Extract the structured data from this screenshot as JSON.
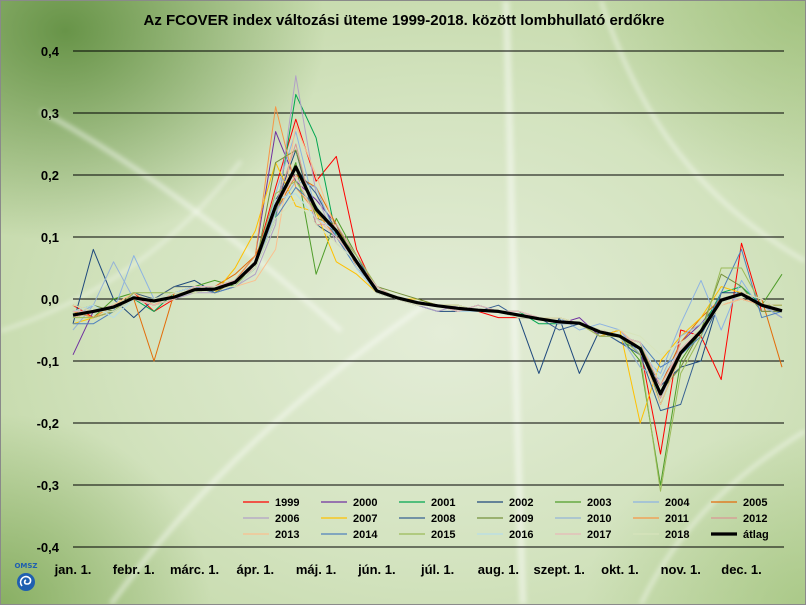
{
  "chart_data": {
    "type": "line",
    "title": "Az FCOVER index változási üteme 1999-2018. között lombhullató erdőkre",
    "ylim": [
      -0.4,
      0.4
    ],
    "y_ticks": [
      "0,4",
      "0,3",
      "0,2",
      "0,1",
      "0,0",
      "-0,1",
      "-0,2",
      "-0,3",
      "-0,4"
    ],
    "x_ticks": [
      "jan. 1.",
      "febr. 1.",
      "márc. 1.",
      "ápr. 1.",
      "máj. 1.",
      "jún. 1.",
      "júl. 1.",
      "aug. 1.",
      "szept. 1.",
      "okt. 1.",
      "nov. 1.",
      "dec. 1."
    ],
    "grid": true,
    "legend_position": "bottom-right",
    "x": [
      "jan. 1.",
      "jan. 11.",
      "jan. 21.",
      "febr. 1.",
      "febr. 11.",
      "febr. 21.",
      "márc. 1.",
      "márc. 11.",
      "márc. 21.",
      "ápr. 1.",
      "ápr. 11.",
      "ápr. 21.",
      "máj. 1.",
      "máj. 11.",
      "máj. 21.",
      "jún. 1.",
      "jún. 11.",
      "jún. 21.",
      "júl. 1.",
      "júl. 11.",
      "júl. 21.",
      "aug. 1.",
      "aug. 11.",
      "aug. 21.",
      "szept. 1.",
      "szept. 11.",
      "szept. 21.",
      "okt. 1.",
      "okt. 11.",
      "okt. 21.",
      "nov. 1.",
      "nov. 11.",
      "nov. 21.",
      "dec. 1.",
      "dec. 11.",
      "dec. 21."
    ],
    "series": [
      {
        "name": "1999",
        "color": "#ff0000",
        "values": [
          -0.01,
          -0.03,
          -0.02,
          0.01,
          -0.02,
          0.0,
          0.02,
          0.01,
          0.03,
          0.06,
          0.18,
          0.29,
          0.19,
          0.23,
          0.08,
          0.01,
          0.0,
          -0.01,
          -0.01,
          -0.02,
          -0.02,
          -0.03,
          -0.03,
          -0.03,
          -0.04,
          -0.04,
          -0.05,
          -0.06,
          -0.08,
          -0.25,
          -0.05,
          -0.06,
          -0.13,
          0.09,
          -0.02,
          -0.02
        ]
      },
      {
        "name": "2000",
        "color": "#7030a0",
        "values": [
          -0.09,
          -0.02,
          -0.01,
          0.0,
          -0.01,
          0.01,
          0.02,
          0.02,
          0.03,
          0.07,
          0.27,
          0.19,
          0.16,
          0.12,
          0.05,
          0.01,
          0.0,
          -0.01,
          -0.01,
          -0.02,
          -0.02,
          -0.02,
          -0.03,
          -0.03,
          -0.04,
          -0.03,
          -0.06,
          -0.05,
          -0.09,
          -0.14,
          -0.07,
          -0.04,
          0.0,
          0.01,
          -0.01,
          -0.03
        ]
      },
      {
        "name": "2001",
        "color": "#00a650",
        "values": [
          -0.03,
          -0.02,
          -0.01,
          0.0,
          -0.02,
          0.01,
          0.01,
          0.02,
          0.02,
          0.05,
          0.13,
          0.33,
          0.26,
          0.1,
          0.06,
          0.02,
          0.0,
          -0.01,
          -0.01,
          -0.01,
          -0.02,
          -0.02,
          -0.02,
          -0.04,
          -0.04,
          -0.04,
          -0.05,
          -0.06,
          -0.07,
          -0.17,
          -0.09,
          -0.05,
          0.01,
          0.02,
          -0.01,
          -0.02
        ]
      },
      {
        "name": "2002",
        "color": "#1f497d",
        "values": [
          -0.04,
          0.08,
          0.0,
          -0.03,
          0.0,
          0.02,
          0.03,
          0.01,
          0.02,
          0.06,
          0.15,
          0.24,
          0.12,
          0.1,
          0.06,
          0.01,
          0.0,
          -0.01,
          -0.02,
          -0.02,
          -0.01,
          -0.02,
          -0.03,
          -0.12,
          -0.03,
          -0.12,
          -0.05,
          -0.07,
          -0.08,
          -0.14,
          -0.11,
          -0.1,
          0.01,
          0.01,
          0.0,
          -0.02
        ]
      },
      {
        "name": "2003",
        "color": "#4f9d2a",
        "values": [
          -0.02,
          -0.03,
          0.0,
          0.01,
          -0.01,
          0.0,
          0.02,
          0.03,
          0.02,
          0.06,
          0.14,
          0.22,
          0.04,
          0.13,
          0.07,
          0.02,
          0.0,
          -0.01,
          -0.01,
          -0.01,
          -0.02,
          -0.02,
          -0.03,
          -0.03,
          -0.04,
          -0.04,
          -0.06,
          -0.06,
          -0.1,
          -0.3,
          -0.1,
          -0.05,
          0.0,
          0.0,
          -0.01,
          0.04
        ]
      },
      {
        "name": "2004",
        "color": "#8db3e2",
        "values": [
          -0.03,
          -0.01,
          -0.02,
          0.07,
          0.0,
          0.01,
          0.01,
          0.02,
          0.03,
          0.05,
          0.17,
          0.27,
          0.14,
          0.11,
          0.05,
          0.01,
          0.0,
          -0.01,
          -0.01,
          -0.02,
          -0.02,
          -0.02,
          -0.02,
          -0.03,
          -0.03,
          -0.05,
          -0.04,
          -0.05,
          -0.09,
          -0.12,
          -0.04,
          0.03,
          -0.05,
          0.03,
          -0.02,
          -0.02
        ]
      },
      {
        "name": "2005",
        "color": "#e36c09",
        "values": [
          -0.01,
          -0.02,
          -0.01,
          0.0,
          -0.1,
          0.01,
          0.01,
          0.02,
          0.04,
          0.07,
          0.14,
          0.2,
          0.18,
          0.12,
          0.05,
          0.02,
          0.0,
          -0.01,
          -0.01,
          -0.02,
          -0.02,
          -0.02,
          -0.03,
          -0.03,
          -0.03,
          -0.04,
          -0.05,
          -0.06,
          -0.07,
          -0.14,
          -0.07,
          -0.03,
          0.0,
          0.01,
          0.0,
          -0.11
        ]
      },
      {
        "name": "2006",
        "color": "#b2a1c7",
        "values": [
          -0.02,
          -0.02,
          -0.02,
          0.0,
          0.0,
          0.0,
          0.01,
          0.01,
          0.02,
          0.04,
          0.12,
          0.36,
          0.17,
          0.09,
          0.06,
          0.01,
          0.0,
          -0.01,
          -0.02,
          -0.01,
          -0.02,
          -0.02,
          -0.03,
          -0.03,
          -0.04,
          -0.04,
          -0.05,
          -0.05,
          -0.08,
          -0.16,
          -0.09,
          -0.05,
          0.0,
          0.0,
          -0.01,
          -0.01
        ]
      },
      {
        "name": "2007",
        "color": "#ffc000",
        "values": [
          -0.04,
          -0.03,
          -0.01,
          0.01,
          0.0,
          0.02,
          0.02,
          0.01,
          0.05,
          0.11,
          0.22,
          0.15,
          0.14,
          0.06,
          0.04,
          0.01,
          0.0,
          0.0,
          -0.01,
          -0.01,
          -0.02,
          -0.02,
          -0.03,
          -0.03,
          -0.03,
          -0.04,
          -0.06,
          -0.05,
          -0.2,
          -0.1,
          -0.06,
          -0.03,
          0.02,
          0.01,
          -0.01,
          -0.02
        ]
      },
      {
        "name": "2008",
        "color": "#366092",
        "values": [
          -0.03,
          -0.02,
          -0.02,
          0.01,
          0.0,
          0.02,
          0.02,
          0.02,
          0.03,
          0.06,
          0.16,
          0.21,
          0.17,
          0.11,
          0.07,
          0.01,
          0.0,
          -0.01,
          -0.01,
          -0.02,
          -0.02,
          -0.01,
          -0.03,
          -0.03,
          -0.05,
          -0.04,
          -0.05,
          -0.07,
          -0.09,
          -0.18,
          -0.17,
          -0.07,
          0.0,
          0.01,
          -0.01,
          -0.02
        ]
      },
      {
        "name": "2009",
        "color": "#76923c",
        "values": [
          -0.02,
          -0.01,
          -0.02,
          0.0,
          0.0,
          0.0,
          0.02,
          0.01,
          0.03,
          0.05,
          0.22,
          0.24,
          0.13,
          0.12,
          0.06,
          0.02,
          0.01,
          0.0,
          -0.01,
          -0.02,
          -0.02,
          -0.02,
          -0.02,
          -0.03,
          -0.03,
          -0.04,
          -0.05,
          -0.06,
          -0.07,
          -0.15,
          -0.11,
          -0.05,
          0.04,
          0.02,
          -0.02,
          -0.02
        ]
      },
      {
        "name": "2010",
        "color": "#95b3d7",
        "values": [
          -0.05,
          -0.01,
          0.06,
          0.0,
          0.0,
          0.01,
          0.01,
          0.02,
          0.02,
          0.05,
          0.14,
          0.19,
          0.18,
          0.1,
          0.05,
          0.02,
          0.0,
          -0.01,
          -0.01,
          -0.01,
          -0.02,
          -0.02,
          -0.03,
          -0.03,
          -0.04,
          -0.04,
          -0.06,
          -0.06,
          -0.11,
          -0.13,
          -0.06,
          -0.04,
          -0.01,
          0.0,
          -0.01,
          -0.03
        ]
      },
      {
        "name": "2011",
        "color": "#f79646",
        "values": [
          -0.02,
          -0.03,
          -0.01,
          0.0,
          0.0,
          0.01,
          0.02,
          0.02,
          0.03,
          0.07,
          0.31,
          0.18,
          0.14,
          0.1,
          0.06,
          0.01,
          0.0,
          -0.01,
          -0.01,
          -0.01,
          -0.02,
          -0.02,
          -0.02,
          -0.03,
          -0.03,
          -0.04,
          -0.05,
          -0.06,
          -0.07,
          -0.14,
          -0.08,
          -0.05,
          -0.01,
          0.0,
          -0.01,
          -0.01
        ]
      },
      {
        "name": "2012",
        "color": "#d99694",
        "values": [
          -0.02,
          -0.02,
          -0.01,
          0.0,
          -0.01,
          0.01,
          0.02,
          0.02,
          0.03,
          0.06,
          0.15,
          0.25,
          0.12,
          0.12,
          0.07,
          0.02,
          0.0,
          -0.01,
          -0.01,
          -0.02,
          -0.02,
          -0.02,
          -0.02,
          -0.03,
          -0.04,
          -0.04,
          -0.06,
          -0.06,
          -0.08,
          -0.16,
          -0.07,
          -0.05,
          0.0,
          0.01,
          0.0,
          -0.02
        ]
      },
      {
        "name": "2013",
        "color": "#fac08f",
        "values": [
          -0.03,
          -0.02,
          -0.01,
          0.01,
          -0.01,
          0.01,
          0.01,
          0.02,
          0.02,
          0.03,
          0.08,
          0.28,
          0.2,
          0.11,
          0.06,
          0.01,
          0.0,
          -0.01,
          -0.01,
          -0.02,
          -0.02,
          -0.02,
          -0.03,
          -0.03,
          -0.03,
          -0.04,
          -0.05,
          -0.05,
          -0.08,
          -0.17,
          -0.09,
          -0.05,
          -0.01,
          0.0,
          -0.01,
          -0.02
        ]
      },
      {
        "name": "2014",
        "color": "#4f81bd",
        "values": [
          -0.04,
          -0.04,
          -0.02,
          0.0,
          0.0,
          0.01,
          0.02,
          0.01,
          0.02,
          0.05,
          0.13,
          0.18,
          0.15,
          0.1,
          0.05,
          0.01,
          0.0,
          -0.01,
          -0.01,
          -0.02,
          -0.02,
          -0.02,
          -0.03,
          -0.03,
          -0.04,
          -0.04,
          -0.05,
          -0.06,
          -0.07,
          -0.11,
          -0.09,
          -0.06,
          0.01,
          0.08,
          -0.03,
          -0.02
        ]
      },
      {
        "name": "2015",
        "color": "#9bbb59",
        "values": [
          -0.03,
          -0.03,
          -0.02,
          0.01,
          0.01,
          0.01,
          0.01,
          0.02,
          0.02,
          0.06,
          0.17,
          0.19,
          0.14,
          0.11,
          0.07,
          0.02,
          0.0,
          -0.01,
          -0.01,
          -0.01,
          -0.02,
          -0.02,
          -0.03,
          -0.03,
          -0.03,
          -0.04,
          -0.06,
          -0.06,
          -0.09,
          -0.31,
          -0.12,
          -0.06,
          0.05,
          0.05,
          -0.01,
          -0.01
        ]
      },
      {
        "name": "2016",
        "color": "#b7dde8",
        "values": [
          -0.02,
          -0.01,
          -0.03,
          0.0,
          0.0,
          0.01,
          0.02,
          0.02,
          0.03,
          0.06,
          0.16,
          0.17,
          0.13,
          0.11,
          0.05,
          0.01,
          0.0,
          -0.01,
          -0.01,
          -0.02,
          -0.02,
          -0.02,
          -0.02,
          -0.03,
          -0.04,
          -0.04,
          -0.05,
          -0.06,
          -0.07,
          -0.13,
          -0.08,
          -0.05,
          0.0,
          0.01,
          -0.01,
          -0.02
        ]
      },
      {
        "name": "2017",
        "color": "#e6b9b8",
        "values": [
          -0.02,
          -0.02,
          -0.01,
          0.0,
          -0.01,
          0.0,
          0.02,
          0.02,
          0.03,
          0.05,
          0.15,
          0.2,
          0.13,
          0.1,
          0.06,
          0.02,
          0.0,
          -0.01,
          -0.01,
          -0.02,
          -0.01,
          -0.02,
          -0.02,
          -0.03,
          -0.03,
          -0.04,
          -0.05,
          -0.06,
          -0.07,
          -0.14,
          -0.08,
          -0.05,
          -0.01,
          0.01,
          0.0,
          -0.02
        ]
      },
      {
        "name": "2018",
        "color": "#d7e4bc",
        "values": [
          -0.01,
          -0.02,
          -0.02,
          0.0,
          0.0,
          0.01,
          0.01,
          0.02,
          0.02,
          0.05,
          0.13,
          0.16,
          0.12,
          0.09,
          0.06,
          0.01,
          0.0,
          -0.01,
          -0.01,
          -0.01,
          -0.02,
          -0.02,
          -0.03,
          -0.03,
          -0.03,
          -0.04,
          -0.05,
          -0.05,
          -0.06,
          -0.09,
          -0.07,
          -0.05,
          -0.01,
          0.01,
          0.0,
          -0.02
        ]
      },
      {
        "name": "átlag",
        "color": "#000000",
        "values": [
          -0.026,
          -0.02,
          -0.013,
          0.002,
          -0.003,
          0.003,
          0.015,
          0.016,
          0.027,
          0.058,
          0.15,
          0.213,
          0.145,
          0.11,
          0.06,
          0.013,
          0.002,
          -0.006,
          -0.011,
          -0.015,
          -0.018,
          -0.02,
          -0.026,
          -0.032,
          -0.037,
          -0.039,
          -0.053,
          -0.06,
          -0.08,
          -0.153,
          -0.087,
          -0.052,
          -0.002,
          0.008,
          -0.01,
          -0.019
        ]
      }
    ]
  },
  "logo": {
    "text": "OMSZ"
  },
  "colors": {
    "grid": "#000000",
    "background": "#d3e3bf",
    "logo": "#1f5fb0"
  }
}
